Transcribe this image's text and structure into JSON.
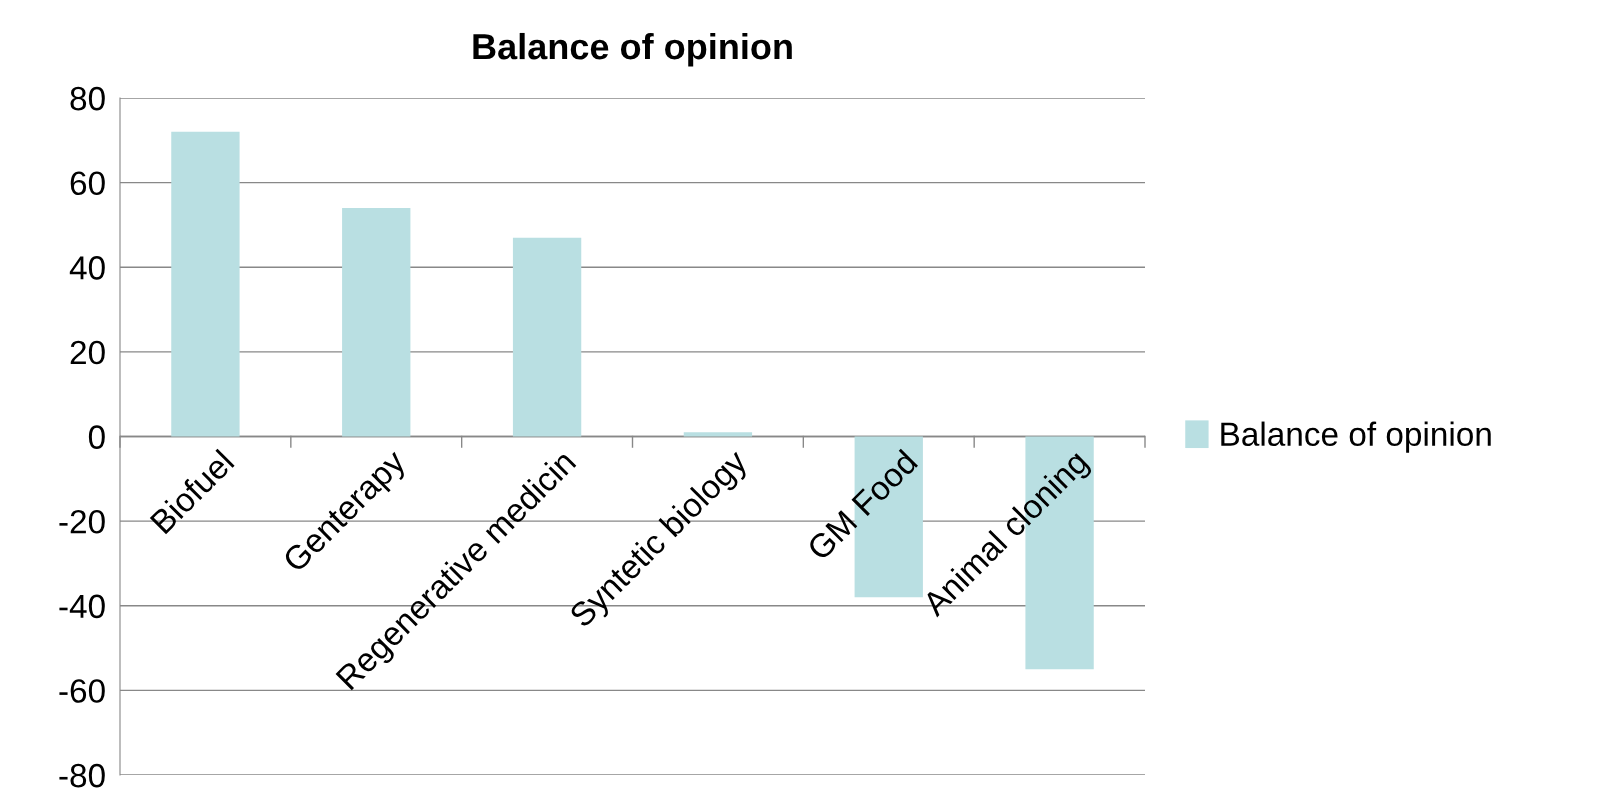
{
  "chart_data": {
    "type": "bar",
    "title": "Balance of opinion",
    "categories": [
      "Biofuel",
      "Genterapy",
      "Regenerative medicin",
      "Syntetic biology",
      "GM Food",
      "Animal cloning"
    ],
    "series": [
      {
        "name": "Balance of opinion",
        "color": "#b9dfe2",
        "values": [
          72,
          54,
          47,
          1,
          -38,
          -55
        ]
      }
    ],
    "ylim": [
      -80,
      80
    ],
    "yticks": [
      -80,
      -60,
      -40,
      -20,
      0,
      20,
      40,
      60,
      80
    ],
    "grid": "y",
    "legend": "right"
  }
}
